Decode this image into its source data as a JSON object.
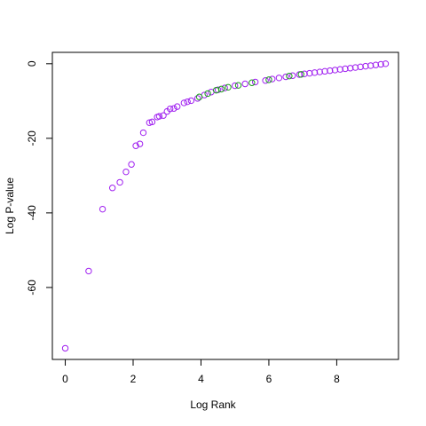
{
  "chart_data": {
    "type": "scatter",
    "x_label": "Log Rank",
    "y_label": "Log P-value",
    "xlim": [
      -0.38,
      9.82
    ],
    "ylim": [
      -79.3,
      3.05
    ],
    "xticks": [
      0,
      2,
      4,
      6,
      8
    ],
    "yticks": [
      0,
      -20,
      -40,
      -60
    ],
    "series": [
      {
        "color": "#a020f0",
        "x": [
          0,
          0.69,
          1.1,
          1.39,
          1.61,
          1.79,
          1.95,
          2.08,
          2.2,
          2.3,
          2.48,
          2.56,
          2.71,
          2.77,
          2.89,
          3.0,
          3.09,
          3.2,
          3.3,
          3.5,
          3.6,
          3.71,
          3.9,
          4.1,
          4.3,
          4.5,
          4.7,
          5.0,
          5.3,
          5.6,
          5.9,
          6.1,
          6.3,
          6.5,
          6.7,
          6.9,
          7.05,
          7.2,
          7.35,
          7.5,
          7.65,
          7.8,
          7.95,
          8.1,
          8.25,
          8.4,
          8.55,
          8.7,
          8.85,
          9.0,
          9.15,
          9.3,
          9.44
        ],
        "values": [
          -76.3,
          -55.6,
          -39,
          -33.3,
          -31.8,
          -29,
          -27,
          -22,
          -21.5,
          -18.5,
          -15.8,
          -15.6,
          -14.3,
          -14.1,
          -13.9,
          -12.8,
          -12.1,
          -12,
          -11.5,
          -10.5,
          -10.2,
          -9.9,
          -9.3,
          -8.4,
          -7.6,
          -7.0,
          -6.5,
          -5.9,
          -5.4,
          -4.9,
          -4.5,
          -4.1,
          -3.8,
          -3.5,
          -3.2,
          -2.9,
          -2.72,
          -2.55,
          -2.38,
          -2.2,
          -2.03,
          -1.86,
          -1.69,
          -1.52,
          -1.35,
          -1.18,
          -1.01,
          -0.84,
          -0.67,
          -0.5,
          -0.33,
          -0.16,
          0
        ]
      },
      {
        "color": "#1a9e1a",
        "x": [
          3.95,
          4.2,
          4.45,
          4.6,
          4.8,
          5.1,
          5.5,
          6.0,
          6.6,
          6.95
        ],
        "values": [
          -8.9,
          -8.0,
          -7.1,
          -6.8,
          -6.3,
          -5.8,
          -5.1,
          -4.3,
          -3.3,
          -2.85
        ]
      }
    ]
  }
}
